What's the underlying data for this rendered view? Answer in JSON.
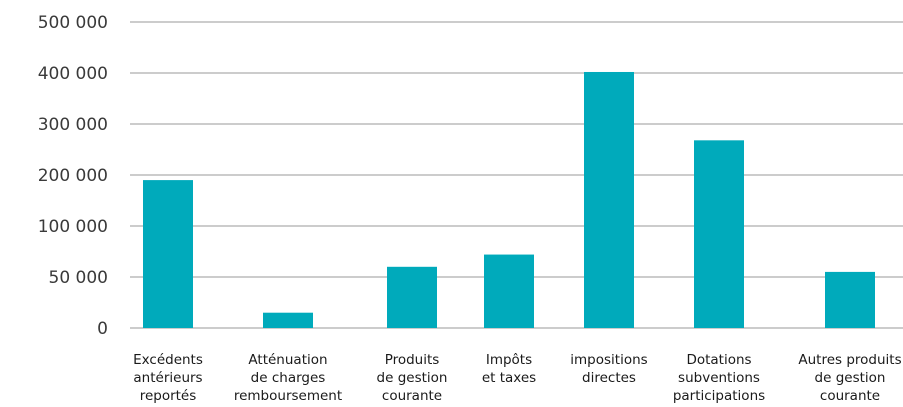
{
  "chart_data": {
    "type": "bar",
    "title": "",
    "xlabel": "",
    "ylabel": "",
    "grid": true,
    "yticks": [
      {
        "value": 0,
        "label": "0"
      },
      {
        "value": 50000,
        "label": "50 000"
      },
      {
        "value": 100000,
        "label": "100 000"
      },
      {
        "value": 200000,
        "label": "200 000"
      },
      {
        "value": 300000,
        "label": "300 000"
      },
      {
        "value": 400000,
        "label": "400 000"
      },
      {
        "value": 500000,
        "label": "500 000"
      }
    ],
    "categories": [
      [
        "Excédents",
        "antérieurs",
        "reportés"
      ],
      [
        "Atténuation",
        "de charges",
        "remboursement"
      ],
      [
        "Produits",
        "de gestion",
        "courante"
      ],
      [
        "Impôts",
        "et taxes"
      ],
      [
        "impositions",
        "directes"
      ],
      [
        "Dotations",
        "subventions",
        "participations"
      ],
      [
        "Autres produits",
        "de gestion",
        "courante"
      ]
    ],
    "values": [
      190000,
      15000,
      60000,
      72000,
      402000,
      268000,
      55000
    ],
    "colors": {
      "bar": "#00aabb",
      "grid": "#9a9a9a"
    }
  }
}
